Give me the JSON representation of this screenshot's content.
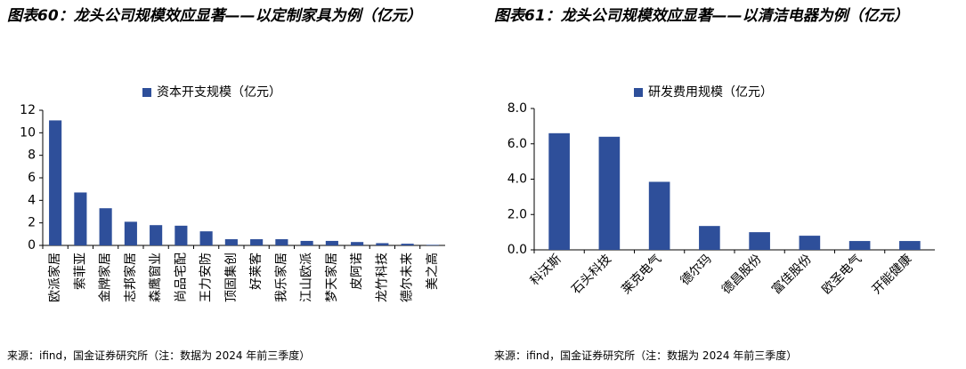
{
  "chart_data": [
    {
      "type": "bar",
      "title": "图表60：龙头公司规模效应显著——以定制家具为例（亿元）",
      "source": "来源：ifind，国金证券研究所（注：数据为 2024 年前三季度）",
      "categories": [
        "欧派家居",
        "索菲亚",
        "金牌家居",
        "志邦家居",
        "森鹰窗业",
        "尚品宅配",
        "王力安防",
        "顶固集创",
        "好莱客",
        "我乐家居",
        "江山欧派",
        "梦天家居",
        "皮阿诺",
        "龙竹科技",
        "德尔未来",
        "美之高"
      ],
      "series": [
        {
          "name": "资本开支规模（亿元）",
          "color": "#2e4f9a",
          "values": [
            11.1,
            4.7,
            3.3,
            2.1,
            1.8,
            1.75,
            1.25,
            0.55,
            0.55,
            0.55,
            0.4,
            0.4,
            0.3,
            0.2,
            0.15,
            0.05
          ]
        }
      ],
      "ylim": [
        0,
        12
      ],
      "yticks": [
        0,
        2,
        4,
        6,
        8,
        10,
        12
      ],
      "label_rotation": -90
    },
    {
      "type": "bar",
      "title": "图表61：龙头公司规模效应显著——以清洁电器为例（亿元）",
      "source": "来源：ifind，国金证券研究所（注：数据为 2024 年前三季度）",
      "categories": [
        "科沃斯",
        "石头科技",
        "莱克电气",
        "德尔玛",
        "德昌股份",
        "富佳股份",
        "欧圣电气",
        "开能健康"
      ],
      "series": [
        {
          "name": "研发费用规模（亿元）",
          "color": "#2e4f9a",
          "values": [
            6.6,
            6.4,
            3.85,
            1.35,
            1.0,
            0.8,
            0.5,
            0.5
          ]
        }
      ],
      "ylim": [
        0,
        8
      ],
      "yticks": [
        {
          "value": 0,
          "label": "0.0"
        },
        {
          "value": 2,
          "label": "2.0"
        },
        {
          "value": 4,
          "label": "4.0"
        },
        {
          "value": 6,
          "label": "6.0"
        },
        {
          "value": 8,
          "label": "8.0"
        }
      ],
      "label_rotation": -45
    }
  ]
}
